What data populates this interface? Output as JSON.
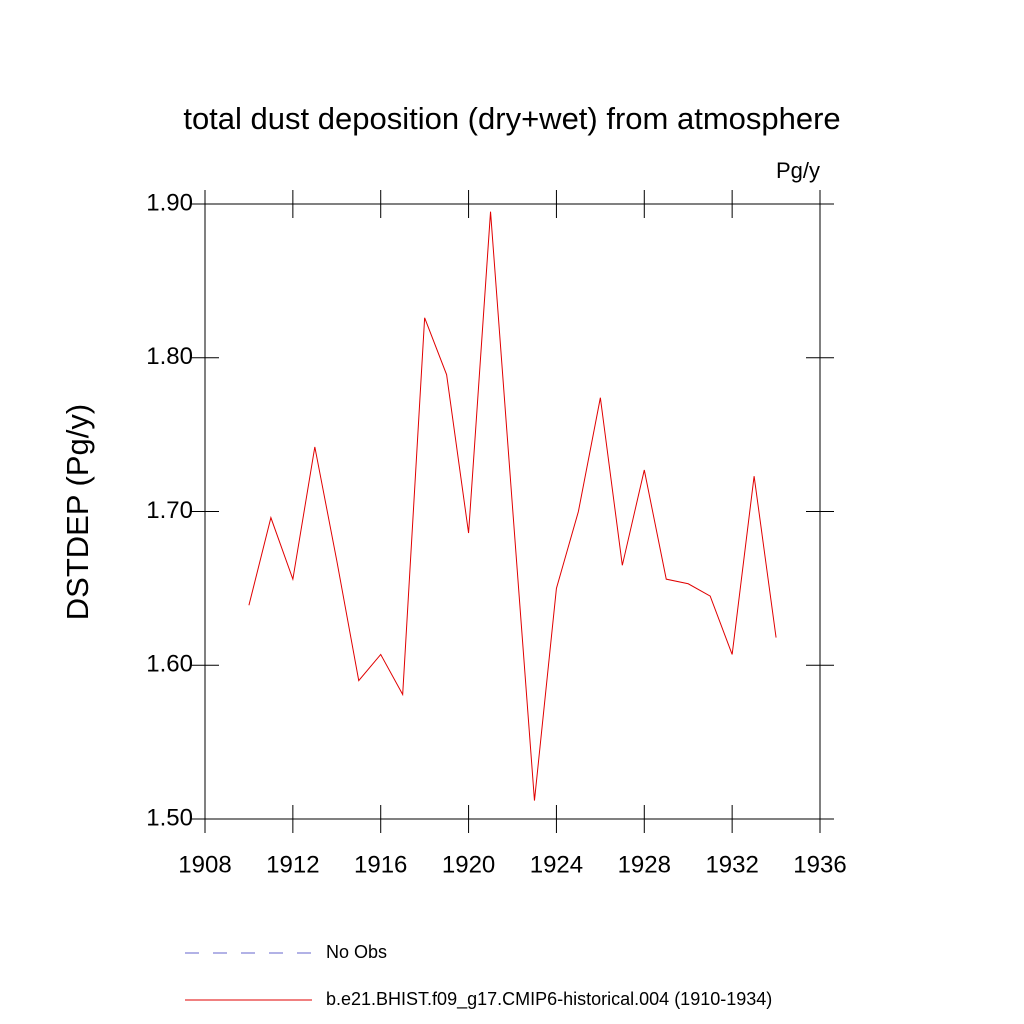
{
  "chart_data": {
    "type": "line",
    "title": "total dust deposition (dry+wet) from atmosphere",
    "units": "Pg/y",
    "y_label": "DSTDEP  (Pg/y)",
    "x": [
      1910,
      1911,
      1912,
      1913,
      1914,
      1915,
      1916,
      1917,
      1918,
      1919,
      1920,
      1921,
      1922,
      1923,
      1924,
      1925,
      1926,
      1927,
      1928,
      1929,
      1930,
      1931,
      1932,
      1933,
      1934
    ],
    "series": [
      {
        "name": "No Obs",
        "color": "#6666cc",
        "dashed": true,
        "values": [
          null,
          null,
          null,
          null,
          null,
          null,
          null,
          null,
          null,
          null,
          null,
          null,
          null,
          null,
          null,
          null,
          null,
          null,
          null,
          null,
          null,
          null,
          null,
          null,
          null
        ]
      },
      {
        "name": "b.e21.BHIST.f09_g17.CMIP6-historical.004 (1910-1934)",
        "color": "#e00000",
        "dashed": false,
        "values": [
          1.639,
          1.696,
          1.656,
          1.742,
          1.668,
          1.59,
          1.607,
          1.581,
          1.826,
          1.789,
          1.686,
          1.895,
          1.703,
          1.512,
          1.65,
          1.7,
          1.774,
          1.665,
          1.727,
          1.656,
          1.653,
          1.645,
          1.607,
          1.723,
          1.618
        ]
      }
    ],
    "xlim": [
      1908,
      1936
    ],
    "xticks": [
      1908,
      1912,
      1916,
      1920,
      1924,
      1928,
      1932,
      1936
    ],
    "ylim": [
      1.5,
      1.9
    ],
    "yticks": [
      {
        "value": 1.5,
        "label": "1.50"
      },
      {
        "value": 1.6,
        "label": "1.60"
      },
      {
        "value": 1.7,
        "label": "1.70"
      },
      {
        "value": 1.8,
        "label": "1.80"
      },
      {
        "value": 1.9,
        "label": "1.90"
      }
    ],
    "grid": false
  }
}
